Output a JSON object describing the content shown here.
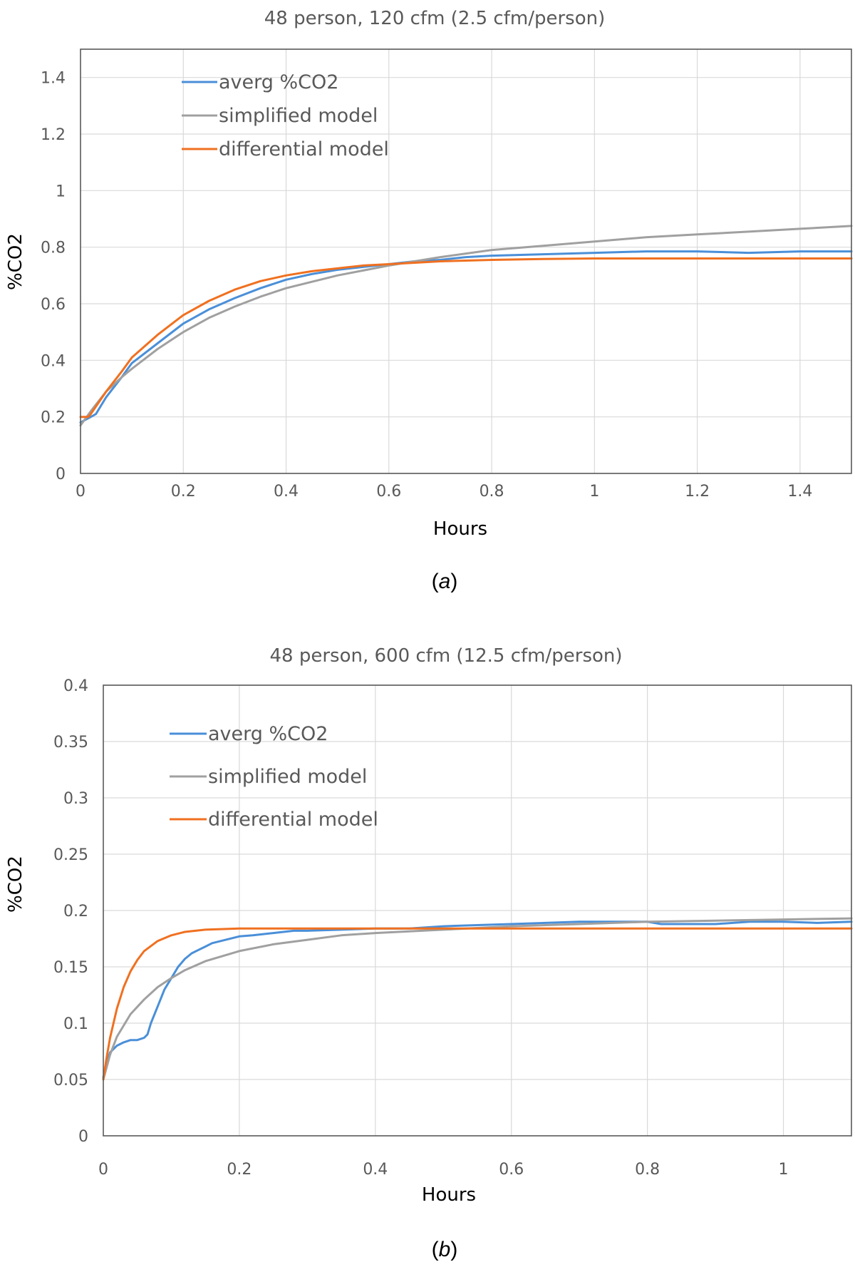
{
  "figure": {
    "colors": {
      "blue": "#4a8fd8",
      "gray": "#a0a0a0",
      "orange": "#f07020",
      "grid": "#d9d9d9",
      "frame": "#595959"
    }
  },
  "chart_data": [
    {
      "id": "a",
      "type": "line",
      "title": "48 person, 120 cfm (2.5 cfm/person)",
      "xlabel": "Hours",
      "ylabel": "%CO2",
      "caption_prefix": "(",
      "caption_letter": "a",
      "caption_suffix": ")",
      "xlim": [
        0,
        1.5
      ],
      "ylim": [
        0,
        1.5
      ],
      "x_ticks": [
        0,
        0.2,
        0.4,
        0.6,
        0.8,
        1,
        1.2,
        1.4
      ],
      "x_tick_labels": [
        "0",
        "0.2",
        "0.4",
        "0.6",
        "0.8",
        "1",
        "1.2",
        "1.4"
      ],
      "y_ticks": [
        0,
        0.2,
        0.4,
        0.6,
        0.8,
        1,
        1.2,
        1.4
      ],
      "y_tick_labels": [
        "0",
        "0.2",
        "0.4",
        "0.6",
        "0.8",
        "1",
        "1.2",
        "1.4"
      ],
      "grid": true,
      "legend_position": "top-left",
      "series": [
        {
          "name": "averg %CO2",
          "color": "#4a8fd8",
          "x": [
            0,
            0.01,
            0.02,
            0.03,
            0.05,
            0.08,
            0.1,
            0.15,
            0.2,
            0.25,
            0.3,
            0.35,
            0.4,
            0.45,
            0.5,
            0.55,
            0.6,
            0.65,
            0.7,
            0.75,
            0.8,
            0.9,
            1.0,
            1.1,
            1.2,
            1.3,
            1.4,
            1.5
          ],
          "y": [
            0.18,
            0.19,
            0.2,
            0.21,
            0.27,
            0.34,
            0.39,
            0.46,
            0.53,
            0.58,
            0.62,
            0.655,
            0.685,
            0.705,
            0.72,
            0.73,
            0.74,
            0.75,
            0.755,
            0.765,
            0.77,
            0.775,
            0.78,
            0.785,
            0.785,
            0.78,
            0.785,
            0.785
          ]
        },
        {
          "name": "simplified model",
          "color": "#a0a0a0",
          "x": [
            0,
            0.02,
            0.05,
            0.08,
            0.1,
            0.15,
            0.2,
            0.25,
            0.3,
            0.35,
            0.4,
            0.5,
            0.6,
            0.7,
            0.8,
            0.9,
            1.0,
            1.1,
            1.2,
            1.3,
            1.4,
            1.5
          ],
          "y": [
            0.17,
            0.22,
            0.29,
            0.34,
            0.37,
            0.44,
            0.5,
            0.55,
            0.59,
            0.625,
            0.655,
            0.7,
            0.735,
            0.765,
            0.79,
            0.805,
            0.82,
            0.835,
            0.845,
            0.855,
            0.865,
            0.875
          ]
        },
        {
          "name": "differential model",
          "color": "#f07020",
          "x": [
            0,
            0.015,
            0.02,
            0.05,
            0.08,
            0.1,
            0.15,
            0.2,
            0.25,
            0.3,
            0.35,
            0.4,
            0.45,
            0.5,
            0.55,
            0.6,
            0.65,
            0.7,
            0.8,
            0.9,
            1.0,
            1.2,
            1.4,
            1.5
          ],
          "y": [
            0.2,
            0.2,
            0.21,
            0.29,
            0.36,
            0.41,
            0.49,
            0.56,
            0.61,
            0.65,
            0.68,
            0.7,
            0.715,
            0.725,
            0.735,
            0.74,
            0.745,
            0.75,
            0.755,
            0.758,
            0.76,
            0.76,
            0.76,
            0.76
          ]
        }
      ]
    },
    {
      "id": "b",
      "type": "line",
      "title": "48 person, 600 cfm (12.5 cfm/person)",
      "xlabel": "Hours",
      "ylabel": "%CO2",
      "caption_prefix": "(",
      "caption_letter": "b",
      "caption_suffix": ")",
      "xlim": [
        0,
        1.1
      ],
      "ylim": [
        0,
        0.4
      ],
      "x_ticks": [
        0,
        0.2,
        0.4,
        0.6,
        0.8,
        1
      ],
      "x_tick_labels": [
        "0",
        "0.2",
        "0.4",
        "0.6",
        "0.8",
        "1"
      ],
      "y_ticks": [
        0,
        0.05,
        0.1,
        0.15,
        0.2,
        0.25,
        0.3,
        0.35,
        0.4
      ],
      "y_tick_labels": [
        "0",
        "0.05",
        "0.1",
        "0.15",
        "0.2",
        "0.25",
        "0.3",
        "0.35",
        "0.4"
      ],
      "grid": true,
      "legend_position": "top-left",
      "series": [
        {
          "name": "averg %CO2",
          "color": "#4a8fd8",
          "x": [
            0,
            0.005,
            0.01,
            0.02,
            0.03,
            0.04,
            0.05,
            0.06,
            0.065,
            0.07,
            0.08,
            0.09,
            0.1,
            0.11,
            0.12,
            0.13,
            0.14,
            0.15,
            0.16,
            0.18,
            0.2,
            0.22,
            0.25,
            0.28,
            0.3,
            0.35,
            0.4,
            0.45,
            0.5,
            0.55,
            0.6,
            0.65,
            0.7,
            0.75,
            0.8,
            0.82,
            0.85,
            0.9,
            0.95,
            1.0,
            1.05,
            1.1
          ],
          "y": [
            0.052,
            0.065,
            0.074,
            0.08,
            0.083,
            0.085,
            0.085,
            0.087,
            0.09,
            0.1,
            0.115,
            0.13,
            0.14,
            0.15,
            0.157,
            0.162,
            0.165,
            0.168,
            0.171,
            0.174,
            0.177,
            0.178,
            0.18,
            0.182,
            0.182,
            0.183,
            0.184,
            0.184,
            0.186,
            0.187,
            0.188,
            0.189,
            0.19,
            0.19,
            0.19,
            0.188,
            0.188,
            0.188,
            0.19,
            0.19,
            0.189,
            0.19
          ]
        },
        {
          "name": "simplified model",
          "color": "#a0a0a0",
          "x": [
            0,
            0.01,
            0.02,
            0.04,
            0.06,
            0.08,
            0.1,
            0.12,
            0.15,
            0.2,
            0.25,
            0.3,
            0.35,
            0.4,
            0.5,
            0.6,
            0.7,
            0.8,
            0.9,
            1.0,
            1.1
          ],
          "y": [
            0.05,
            0.072,
            0.088,
            0.108,
            0.121,
            0.132,
            0.14,
            0.147,
            0.155,
            0.164,
            0.17,
            0.174,
            0.178,
            0.18,
            0.183,
            0.186,
            0.188,
            0.19,
            0.191,
            0.192,
            0.193
          ]
        },
        {
          "name": "differential model",
          "color": "#f07020",
          "x": [
            0,
            0.005,
            0.01,
            0.02,
            0.03,
            0.04,
            0.05,
            0.06,
            0.08,
            0.1,
            0.12,
            0.15,
            0.2,
            0.25,
            0.3,
            0.4,
            0.5,
            0.7,
            0.9,
            1.1
          ],
          "y": [
            0.05,
            0.07,
            0.087,
            0.113,
            0.132,
            0.146,
            0.156,
            0.164,
            0.173,
            0.178,
            0.181,
            0.183,
            0.184,
            0.184,
            0.184,
            0.184,
            0.184,
            0.184,
            0.184,
            0.184
          ]
        }
      ]
    }
  ]
}
